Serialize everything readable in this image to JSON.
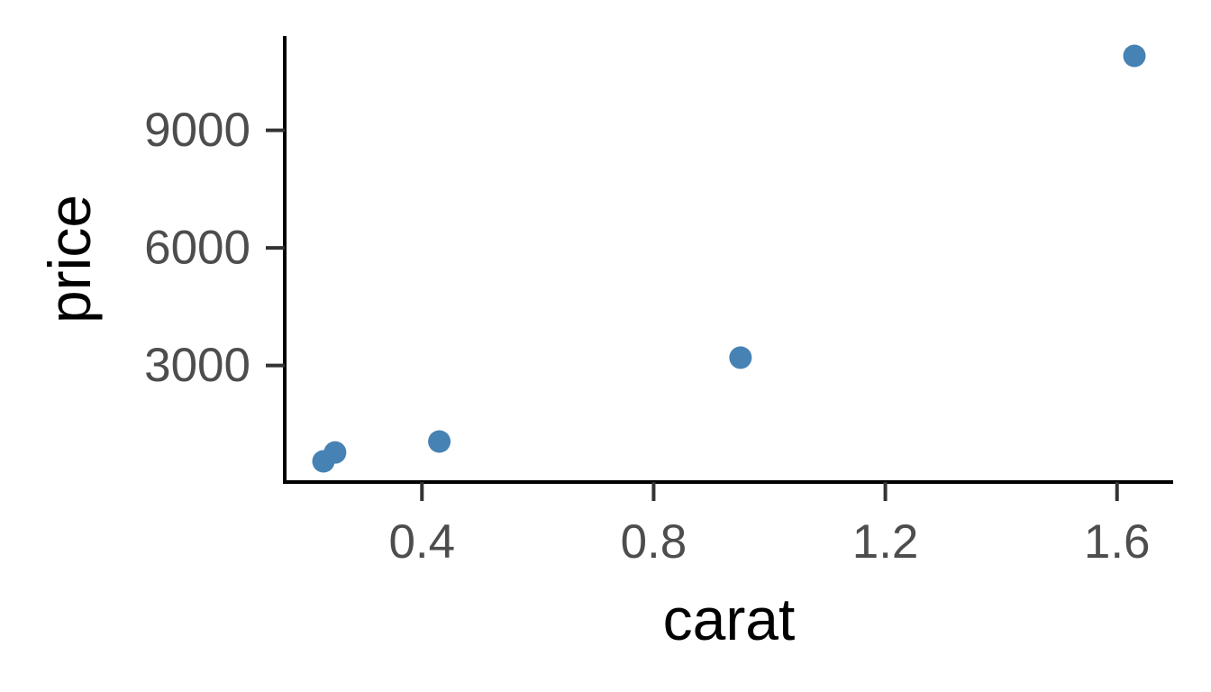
{
  "chart_data": {
    "type": "scatter",
    "title": "",
    "xlabel": "carat",
    "ylabel": "price",
    "xlim": [
      0.23,
      1.63
    ],
    "ylim": [
      554,
      10898
    ],
    "x_ticks": [
      0.4,
      0.8,
      1.2,
      1.6
    ],
    "x_tick_labels": [
      "0.4",
      "0.8",
      "1.2",
      "1.6"
    ],
    "y_ticks": [
      3000,
      6000,
      9000
    ],
    "y_tick_labels": [
      "3000",
      "6000",
      "9000"
    ],
    "grid": false,
    "legend": "none",
    "point_color": "#4682B4",
    "axis_color": "#000000",
    "tick_label_color": "#4d4d4d",
    "points": [
      {
        "x": 0.23,
        "y": 554
      },
      {
        "x": 0.25,
        "y": 780
      },
      {
        "x": 0.43,
        "y": 1060
      },
      {
        "x": 0.95,
        "y": 3200
      },
      {
        "x": 1.63,
        "y": 10898
      }
    ]
  }
}
